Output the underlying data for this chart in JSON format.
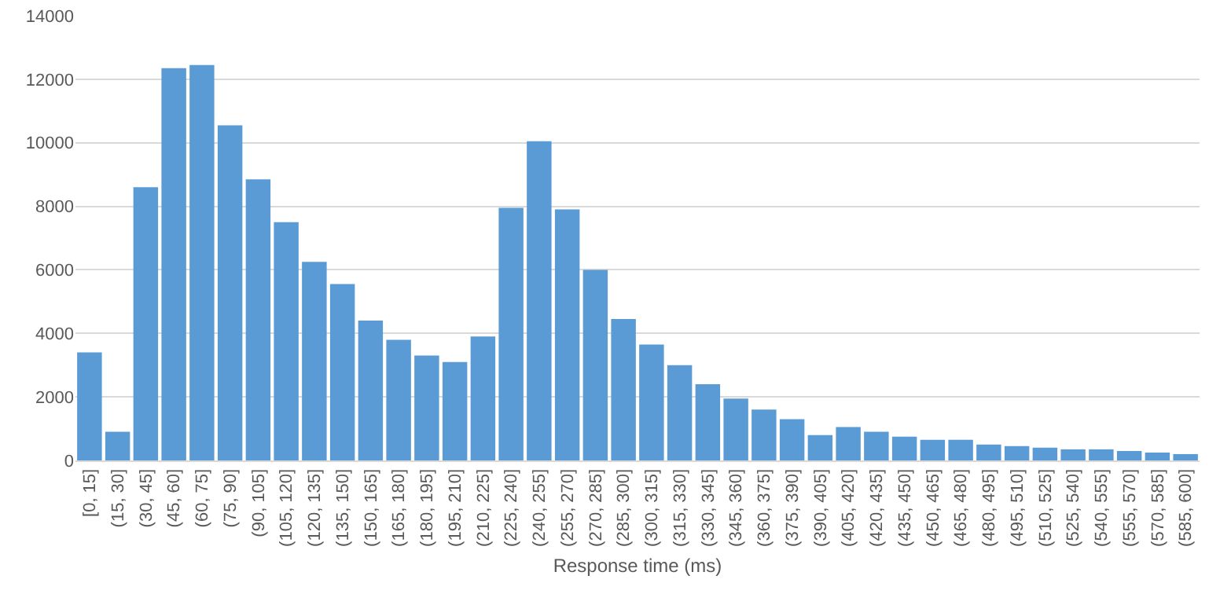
{
  "chart_data": {
    "type": "bar",
    "xlabel": "Response time (ms)",
    "categories": [
      "[0, 15]",
      "(15, 30]",
      "(30, 45]",
      "(45, 60]",
      "(60, 75]",
      "(75, 90]",
      "(90, 105]",
      "(105, 120]",
      "(120, 135]",
      "(135, 150]",
      "(150, 165]",
      "(165, 180]",
      "(180, 195]",
      "(195, 210]",
      "(210, 225]",
      "(225, 240]",
      "(240, 255]",
      "(255, 270]",
      "(270, 285]",
      "(285, 300]",
      "(300, 315]",
      "(315, 330]",
      "(330, 345]",
      "(345, 360]",
      "(360, 375]",
      "(375, 390]",
      "(390, 405]",
      "(405, 420]",
      "(420, 435]",
      "(435, 450]",
      "(450, 465]",
      "(465, 480]",
      "(480, 495]",
      "(495, 510]",
      "(510, 525]",
      "(525, 540]",
      "(540, 555]",
      "(555, 570]",
      "(570, 585]",
      "(585, 600]"
    ],
    "values": [
      3400,
      900,
      8600,
      12350,
      12450,
      10550,
      8850,
      7500,
      6250,
      5550,
      4400,
      3800,
      3300,
      3100,
      3900,
      7950,
      10050,
      7900,
      6000,
      4450,
      3650,
      3000,
      2400,
      1950,
      1600,
      1300,
      800,
      1050,
      900,
      750,
      650,
      650,
      500,
      450,
      400,
      350,
      350,
      300,
      250,
      200
    ],
    "color": "#5b9bd5",
    "ylim": [
      0,
      14000
    ],
    "yticks": [
      0,
      2000,
      4000,
      6000,
      8000,
      10000,
      12000,
      14000
    ],
    "grid": "y"
  }
}
